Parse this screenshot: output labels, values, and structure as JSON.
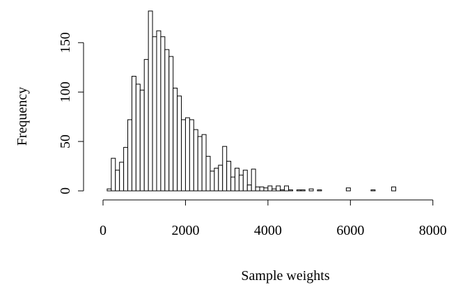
{
  "chart_data": {
    "type": "histogram",
    "xlabel": "Sample weights",
    "ylabel": "Frequency",
    "bins": [
      100,
      200,
      300,
      400,
      500,
      600,
      700,
      800,
      900,
      1000,
      1100,
      1200,
      1300,
      1400,
      1500,
      1600,
      1700,
      1800,
      1900,
      2000,
      2100,
      2200,
      2300,
      2400,
      2500,
      2600,
      2700,
      2800,
      2900,
      3000,
      3100,
      3200,
      3300,
      3400,
      3500,
      3600,
      3700,
      3800,
      3900,
      4000,
      4100,
      4200,
      4300,
      4400,
      4500,
      4600,
      4700,
      4800,
      4900,
      5000,
      5100,
      5200,
      5300,
      5400,
      5500,
      5600,
      5700,
      5800,
      5900,
      6000,
      6100,
      6200,
      6300,
      6400,
      6500,
      6600,
      6700,
      6800,
      6900,
      7000,
      7100,
      7200,
      7300,
      7400,
      7500,
      7600,
      7700,
      7800,
      7900,
      8000,
      8100,
      8200,
      8300,
      8400,
      8500,
      8600,
      8700,
      8800,
      8900
    ],
    "values": [
      2,
      33,
      21,
      29,
      44,
      72,
      116,
      108,
      102,
      133,
      182,
      156,
      162,
      156,
      143,
      136,
      104,
      96,
      72,
      74,
      72,
      62,
      55,
      57,
      35,
      20,
      23,
      26,
      45,
      30,
      14,
      23,
      16,
      21,
      6,
      22,
      4,
      4,
      3,
      5,
      2,
      5,
      1,
      5,
      1,
      0,
      1,
      1,
      0,
      2,
      0,
      1,
      0,
      0,
      0,
      0,
      0,
      0,
      3,
      0,
      0,
      0,
      0,
      0,
      1,
      0,
      0,
      0,
      0,
      4,
      0,
      0,
      0,
      0,
      0,
      0,
      0,
      0,
      0,
      0,
      0,
      0,
      0,
      0,
      0,
      0,
      0,
      0
    ],
    "color": "#ffffff",
    "xlim": [
      0,
      9000
    ],
    "xticks": [
      0,
      2000,
      4000,
      6000,
      8000
    ],
    "ylim": [
      0,
      184
    ],
    "yticks": [
      0,
      50,
      100,
      150
    ]
  }
}
